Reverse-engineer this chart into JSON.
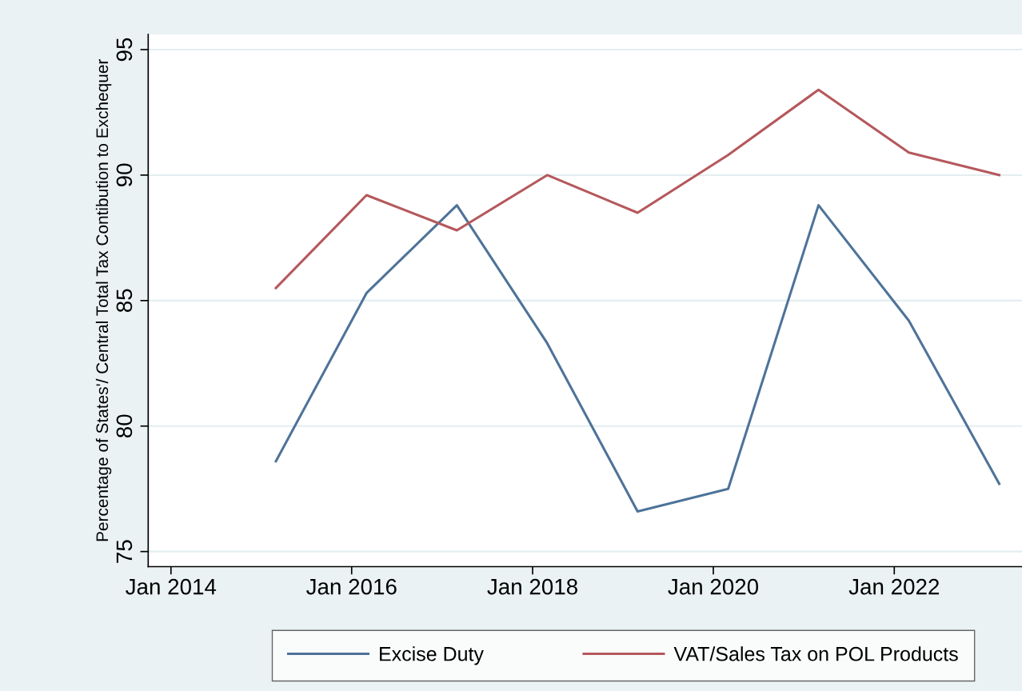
{
  "chart_data": {
    "type": "line",
    "ylabel": "Percentage of States'/ Central Total Tax Contibution to Exchequer",
    "x": [
      "2015-03",
      "2016-03",
      "2017-03",
      "2018-03",
      "2019-03",
      "2020-03",
      "2021-03",
      "2022-03",
      "2023-03"
    ],
    "series": [
      {
        "name": "Excise Duty",
        "color": "#4e7399",
        "values": [
          78.6,
          85.3,
          88.8,
          83.3,
          76.6,
          77.5,
          88.8,
          84.2,
          77.7
        ]
      },
      {
        "name": "VAT/Sales Tax on POL Products",
        "color": "#b5585c",
        "values": [
          85.5,
          89.2,
          87.8,
          90.0,
          88.5,
          90.8,
          93.4,
          90.9,
          90.0
        ]
      }
    ],
    "xlim": [
      "2013-10",
      "2023-06"
    ],
    "xticks": [
      {
        "value": "2014-01",
        "label": "Jan 2014"
      },
      {
        "value": "2016-01",
        "label": "Jan 2016"
      },
      {
        "value": "2018-01",
        "label": "Jan 2018"
      },
      {
        "value": "2020-01",
        "label": "Jan 2020"
      },
      {
        "value": "2022-01",
        "label": "Jan 2022"
      }
    ],
    "ylim": [
      74.4,
      95.6
    ],
    "yticks": [
      75,
      80,
      85,
      90,
      95
    ],
    "grid": "y",
    "legend": "bottom",
    "line_style": "solid",
    "marker": "none"
  }
}
